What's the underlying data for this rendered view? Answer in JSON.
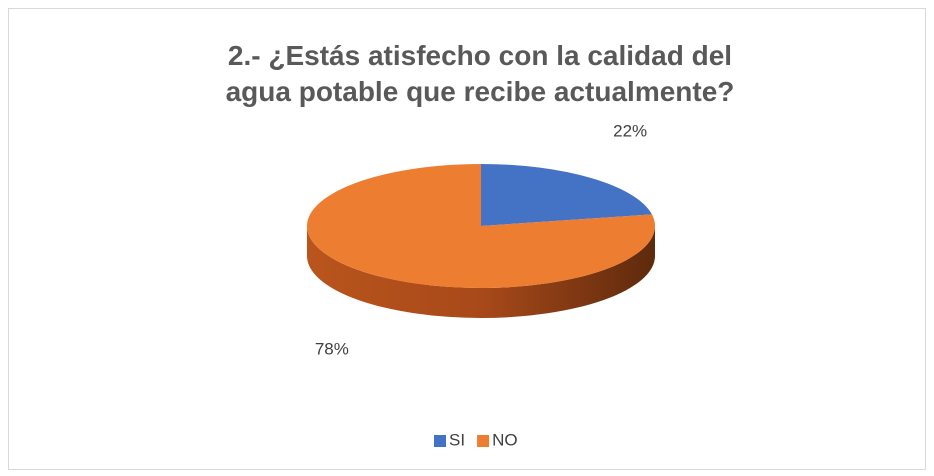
{
  "chart_data": {
    "type": "pie3d",
    "title": "2.- ¿Estás atisfecho con la calidad del agua potable que recibe actualmente?",
    "categories": [
      "SI",
      "NO"
    ],
    "values": [
      22,
      78
    ],
    "value_labels": [
      "22%",
      "78%"
    ],
    "colors": [
      "#4472c4",
      "#ed7d31"
    ],
    "legend": "bottom"
  }
}
